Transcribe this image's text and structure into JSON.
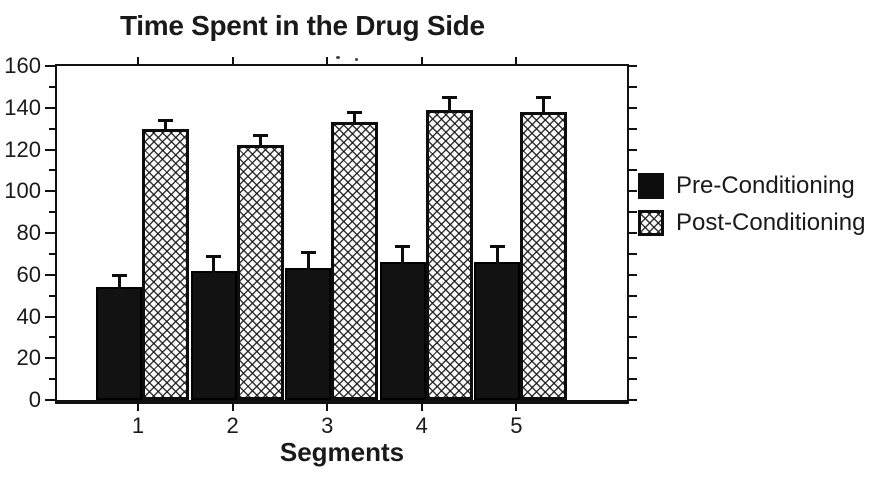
{
  "chart_data": {
    "type": "bar",
    "title": "Time Spent in the Drug Side",
    "xlabel": "Segments",
    "ylabel": "",
    "categories": [
      "1",
      "2",
      "3",
      "4",
      "5"
    ],
    "series": [
      {
        "name": "Pre-Conditioning",
        "style": "solid-black",
        "values": [
          54,
          62,
          63,
          66,
          66
        ],
        "errors": [
          6,
          7,
          8,
          8,
          8
        ]
      },
      {
        "name": "Post-Conditioning",
        "style": "crosshatch",
        "values": [
          130,
          122,
          133,
          139,
          138
        ],
        "errors": [
          4,
          5,
          5,
          6,
          7
        ]
      }
    ],
    "ylim": [
      0,
      160
    ],
    "ytick_step": 20,
    "ytick_minor_step": 10,
    "grid": false,
    "error_bars": true,
    "legend_position": "right"
  },
  "colors": {
    "bar_fill": "#121212",
    "hatch_line": "#141414",
    "frame": "#111111",
    "text": "#1a1a1a"
  }
}
